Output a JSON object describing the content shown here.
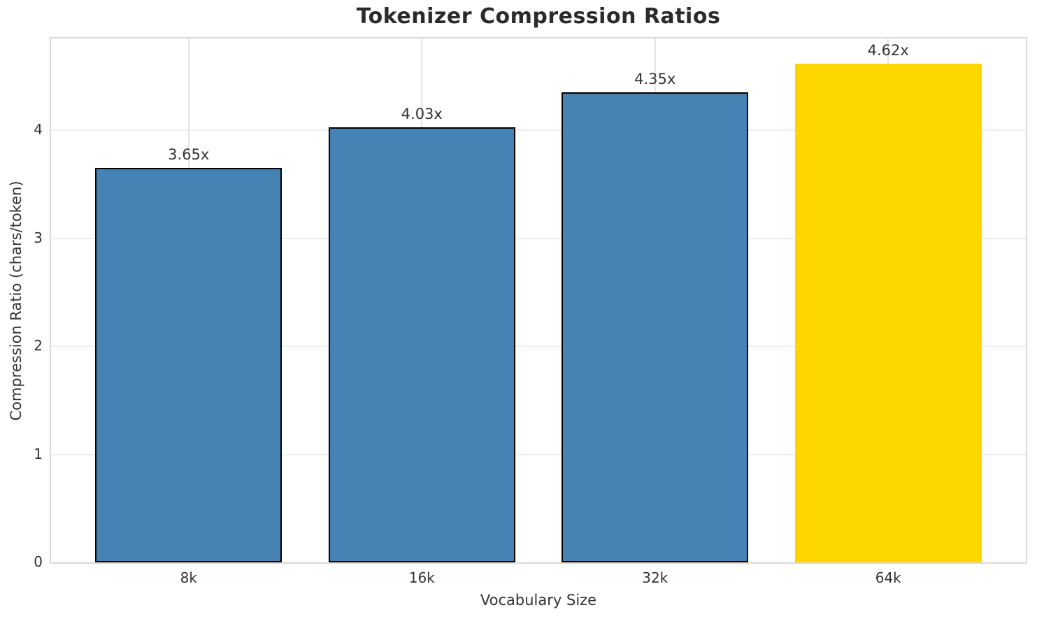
{
  "chart_data": {
    "type": "bar",
    "title": "Tokenizer Compression Ratios",
    "xlabel": "Vocabulary Size",
    "ylabel": "Compression Ratio (chars/token)",
    "categories": [
      "8k",
      "16k",
      "32k",
      "64k"
    ],
    "values": [
      3.65,
      4.03,
      4.35,
      4.62
    ],
    "value_labels": [
      "3.65x",
      "4.03x",
      "4.35x",
      "4.62x"
    ],
    "bar_fill_colors": [
      "#4682B4",
      "#4682B4",
      "#4682B4",
      "#FFD700"
    ],
    "bar_edge_colors": [
      "#000000",
      "#000000",
      "#000000",
      "#FFD700"
    ],
    "highlight_index": 3,
    "yticks": [
      "0",
      "1",
      "2",
      "3",
      "4"
    ],
    "ytick_values": [
      0,
      1,
      2,
      3,
      4
    ],
    "ylim": [
      0,
      4.85
    ],
    "grid": true,
    "legend": "none",
    "accent_color": "#4682B4",
    "highlight_color": "#FFD700"
  }
}
